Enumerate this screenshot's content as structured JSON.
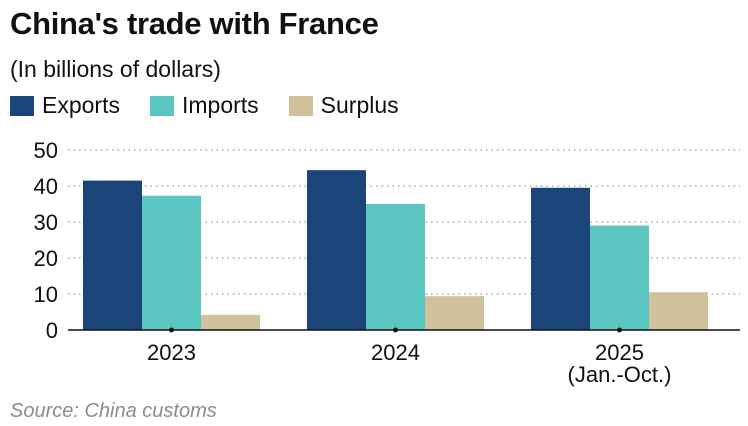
{
  "chart_data": {
    "type": "bar",
    "title": "China's trade with France",
    "subtitle": "(In billions of dollars)",
    "categories": [
      "2023",
      "2024",
      "2025"
    ],
    "category_sublabels": [
      "",
      "",
      "(Jan.-Oct.)"
    ],
    "series": [
      {
        "name": "Exports",
        "color": "#1b4479",
        "values": [
          41.5,
          44.4,
          39.5
        ]
      },
      {
        "name": "Imports",
        "color": "#5cc6c3",
        "values": [
          37.3,
          35.0,
          29.0
        ]
      },
      {
        "name": "Surplus",
        "color": "#cfc29b",
        "values": [
          4.2,
          9.4,
          10.5
        ]
      }
    ],
    "ylim": [
      0,
      50
    ],
    "yticks": [
      "0",
      "10",
      "20",
      "30",
      "40",
      "50"
    ],
    "grid": true,
    "legend_position": "top-left",
    "source": "Source: China customs"
  }
}
